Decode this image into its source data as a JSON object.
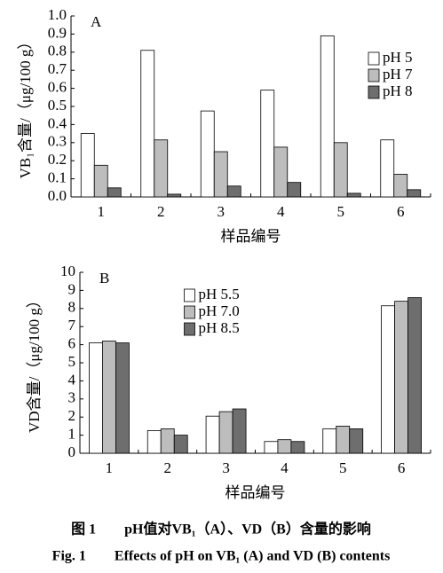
{
  "chart_data": [
    {
      "type": "bar",
      "panel": "A",
      "ylabel": "VB₁含量/（μg/100 g）",
      "xlabel": "样品编号",
      "categories": [
        "1",
        "2",
        "3",
        "4",
        "5",
        "6"
      ],
      "series": [
        {
          "name": "pH 5",
          "color": "#ffffff",
          "values": [
            0.35,
            0.81,
            0.475,
            0.59,
            0.89,
            0.315
          ]
        },
        {
          "name": "pH 7",
          "color": "#bdbdbd",
          "values": [
            0.175,
            0.315,
            0.25,
            0.275,
            0.3,
            0.125
          ]
        },
        {
          "name": "pH 8",
          "color": "#6e6e6e",
          "values": [
            0.05,
            0.015,
            0.06,
            0.08,
            0.02,
            0.04
          ]
        }
      ],
      "ylim": [
        0,
        1
      ],
      "yticks": [
        {
          "value": 0,
          "label": "0.0"
        },
        0.1,
        0.2,
        0.3,
        0.4,
        0.5,
        0.6,
        0.7,
        0.8,
        0.9,
        {
          "value": 1,
          "label": "1.0"
        }
      ],
      "legend": "upper right"
    },
    {
      "type": "bar",
      "panel": "B",
      "ylabel": "VD含量/（μg/100 g）",
      "xlabel": "样品编号",
      "categories": [
        "1",
        "2",
        "3",
        "4",
        "5",
        "6"
      ],
      "series": [
        {
          "name": "pH 5.5",
          "color": "#ffffff",
          "values": [
            6.1,
            1.25,
            2.05,
            0.65,
            1.35,
            8.15
          ]
        },
        {
          "name": "pH 7.0",
          "color": "#bdbdbd",
          "values": [
            6.2,
            1.35,
            2.3,
            0.75,
            1.5,
            8.4
          ]
        },
        {
          "name": "pH 8.5",
          "color": "#6e6e6e",
          "values": [
            6.1,
            1.0,
            2.45,
            0.65,
            1.35,
            8.6
          ]
        }
      ],
      "ylim": [
        0,
        10
      ],
      "yticks": [
        0,
        1,
        2,
        3,
        4,
        5,
        6,
        7,
        8,
        9,
        10
      ],
      "legend": "upper center"
    }
  ],
  "caption": {
    "zh": "图 1　　pH值对VB₁（A）、VD（B）含量的影响",
    "en": "Fig. 1　　Effects of pH on VB₁ (A) and VD (B) contents"
  }
}
